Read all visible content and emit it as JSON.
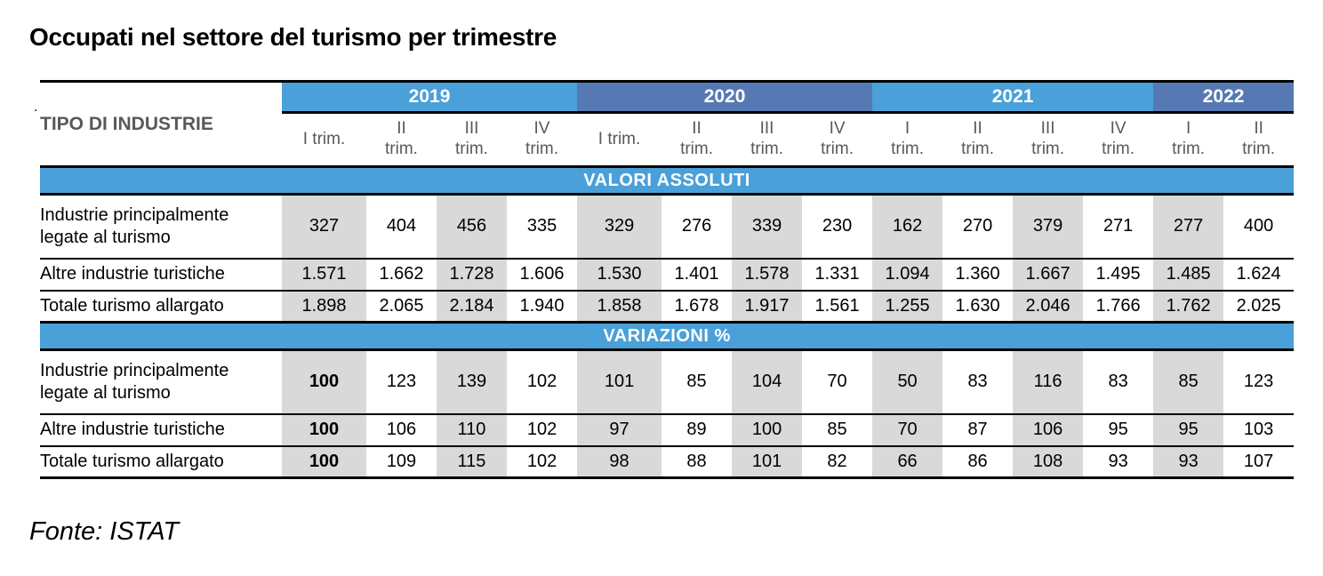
{
  "title": "Occupati nel settore del turismo per trimestre",
  "source": "Fonte: ISTAT",
  "stray_dot": ".",
  "colors": {
    "year_band_light": "#4AA0D8",
    "year_band_dark": "#5679B3",
    "section_band": "#4AA0D8",
    "shaded_column": "#D9D9D9",
    "header_text": "#595959",
    "band_text": "#ffffff",
    "body_text": "#000000"
  },
  "table": {
    "row_header": "TIPO DI INDUSTRIE",
    "year_groups": [
      {
        "label": "2019",
        "span": 4
      },
      {
        "label": "2020",
        "span": 4
      },
      {
        "label": "2021",
        "span": 4
      },
      {
        "label": "2022",
        "span": 2
      }
    ],
    "quarter_headers": [
      "I trim.",
      "II\ntrim.",
      "III\ntrim.",
      "IV\ntrim.",
      "I trim.",
      "II\ntrim.",
      "III\ntrim.",
      "IV\ntrim.",
      "I\ntrim.",
      "II\ntrim.",
      "III\ntrim.",
      "IV\ntrim.",
      "I\ntrim.",
      "II\ntrim."
    ],
    "sections": [
      {
        "band_label": "VALORI ASSOLUTI",
        "rows": [
          {
            "label": "Industrie principalmente legate al turismo",
            "values": [
              "327",
              "404",
              "456",
              "335",
              "329",
              "276",
              "339",
              "230",
              "162",
              "270",
              "379",
              "271",
              "277",
              "400"
            ]
          },
          {
            "label": "Altre industrie turistiche",
            "values": [
              "1.571",
              "1.662",
              "1.728",
              "1.606",
              "1.530",
              "1.401",
              "1.578",
              "1.331",
              "1.094",
              "1.360",
              "1.667",
              "1.495",
              "1.485",
              "1.624"
            ]
          },
          {
            "label": "Totale turismo allargato",
            "values": [
              "1.898",
              "2.065",
              "2.184",
              "1.940",
              "1.858",
              "1.678",
              "1.917",
              "1.561",
              "1.255",
              "1.630",
              "2.046",
              "1.766",
              "1.762",
              "2.025"
            ]
          }
        ]
      },
      {
        "band_label": "VARIAZIONI %",
        "rows": [
          {
            "label": "Industrie principalmente legate al turismo",
            "values": [
              "100",
              "123",
              "139",
              "102",
              "101",
              "85",
              "104",
              "70",
              "50",
              "83",
              "116",
              "83",
              "85",
              "123"
            ]
          },
          {
            "label": "Altre industrie turistiche",
            "values": [
              "100",
              "106",
              "110",
              "102",
              "97",
              "89",
              "100",
              "85",
              "70",
              "87",
              "106",
              "95",
              "95",
              "103"
            ]
          },
          {
            "label": "Totale turismo allargato",
            "values": [
              "100",
              "109",
              "115",
              "102",
              "98",
              "88",
              "101",
              "82",
              "66",
              "86",
              "108",
              "93",
              "93",
              "107"
            ]
          }
        ]
      }
    ]
  }
}
